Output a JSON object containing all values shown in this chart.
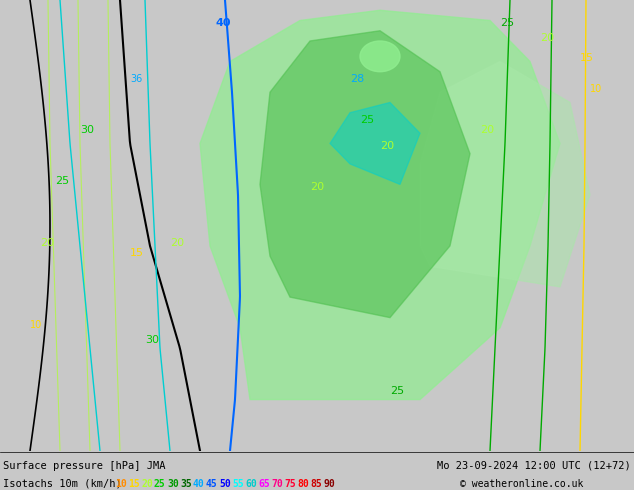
{
  "title_left": "Surface pressure [hPa] JMA",
  "title_right": "Mo 23-09-2024 12:00 UTC (12+72)",
  "subtitle_left": "Isotachs 10m (km/h)",
  "subtitle_right": "© weatheronline.co.uk",
  "legend_values": [
    10,
    15,
    20,
    25,
    30,
    35,
    40,
    45,
    50,
    55,
    60,
    65,
    70,
    75,
    80,
    85,
    90
  ],
  "legend_colors": [
    "#ff8c00",
    "#ffd700",
    "#adff2f",
    "#00ff00",
    "#00e000",
    "#00c000",
    "#00a0ff",
    "#0080ff",
    "#0060ff",
    "#00ffff",
    "#00e0e0",
    "#ff00ff",
    "#ff00aa",
    "#ff0055",
    "#ff0000",
    "#cc0000",
    "#800000"
  ],
  "bg_color": "#d3d3d3",
  "map_bg": "#c8c8c8",
  "figsize": [
    6.34,
    4.9
  ],
  "dpi": 100
}
